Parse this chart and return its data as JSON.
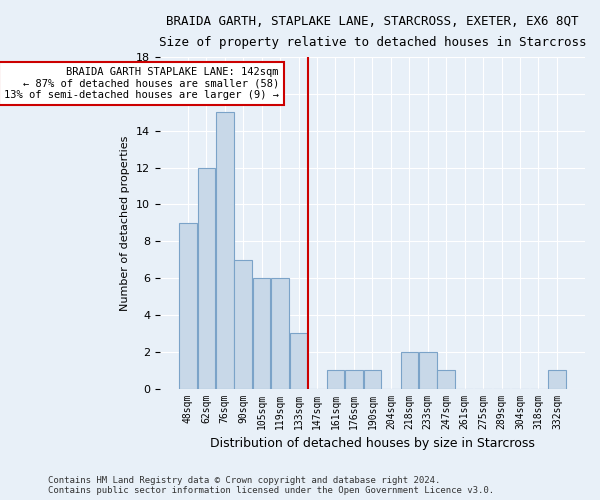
{
  "title": "BRAIDA GARTH, STAPLAKE LANE, STARCROSS, EXETER, EX6 8QT",
  "subtitle": "Size of property relative to detached houses in Starcross",
  "xlabel": "Distribution of detached houses by size in Starcross",
  "ylabel": "Number of detached properties",
  "bar_labels": [
    "48sqm",
    "62sqm",
    "76sqm",
    "90sqm",
    "105sqm",
    "119sqm",
    "133sqm",
    "147sqm",
    "161sqm",
    "176sqm",
    "190sqm",
    "204sqm",
    "218sqm",
    "233sqm",
    "247sqm",
    "261sqm",
    "275sqm",
    "289sqm",
    "304sqm",
    "318sqm",
    "332sqm"
  ],
  "bar_heights": [
    9,
    12,
    15,
    7,
    6,
    6,
    3,
    0,
    1,
    1,
    1,
    0,
    2,
    2,
    1,
    0,
    0,
    0,
    0,
    0,
    1
  ],
  "bar_color": "#c8d8e8",
  "bar_edge_color": "#7ba3c8",
  "red_line_index": 7,
  "red_line_color": "#cc0000",
  "annotation_text": "BRAIDA GARTH STAPLAKE LANE: 142sqm\n← 87% of detached houses are smaller (58)\n13% of semi-detached houses are larger (9) →",
  "annotation_box_color": "#ffffff",
  "annotation_box_edge_color": "#cc0000",
  "ylim": [
    0,
    18
  ],
  "yticks": [
    0,
    2,
    4,
    6,
    8,
    10,
    12,
    14,
    16,
    18
  ],
  "bg_color": "#e8f0f8",
  "grid_color": "#ffffff",
  "footer_line1": "Contains HM Land Registry data © Crown copyright and database right 2024.",
  "footer_line2": "Contains public sector information licensed under the Open Government Licence v3.0."
}
